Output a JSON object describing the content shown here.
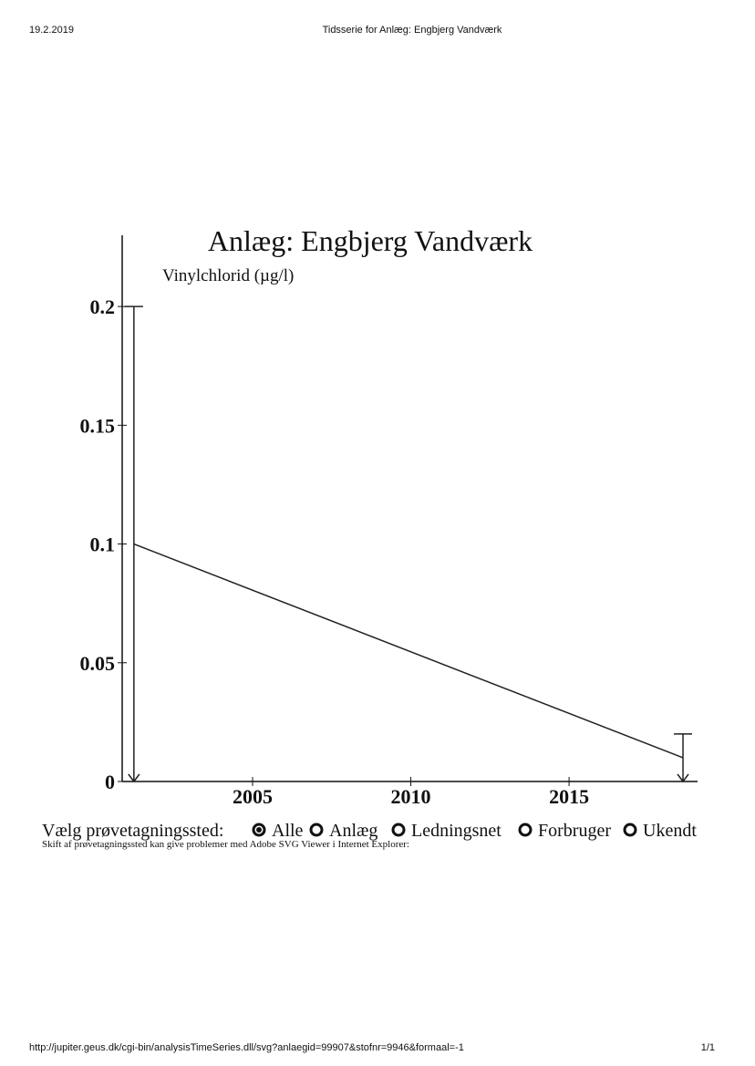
{
  "header": {
    "date": "19.2.2019",
    "title": "Tidsserie for Anlæg: Engbjerg Vandværk"
  },
  "footer": {
    "url": "http://jupiter.geus.dk/cgi-bin/analysisTimeSeries.dll/svg?anlaegid=99907&stofnr=9946&formaal=-1",
    "page": "1/1"
  },
  "chart_data": {
    "type": "line",
    "title": "Anlæg: Engbjerg Vandværk",
    "y_label": "Vinylchlorid (µg/l)",
    "x": [
      2001.25,
      2018.6
    ],
    "series": [
      {
        "color": "#222222",
        "values": [
          0.1,
          0.01
        ],
        "upper_limits": [
          0.2,
          0.02
        ]
      }
    ],
    "xlim": [
      2000.88,
      2019.06
    ],
    "ylim": [
      0,
      0.23
    ],
    "xticks": [
      2005,
      2010,
      2015
    ],
    "yticks": [
      0,
      0.05,
      0.1,
      0.15,
      0.2
    ]
  },
  "selector": {
    "label": "Vælg prøvetagningssted:",
    "options": [
      "Alle",
      "Anlæg",
      "Ledningsnet",
      "Forbruger",
      "Ukendt"
    ],
    "selected": 0,
    "note": "Skift af prøvetagningssted kan give problemer med Adobe SVG Viewer i Internet Explorer:"
  }
}
